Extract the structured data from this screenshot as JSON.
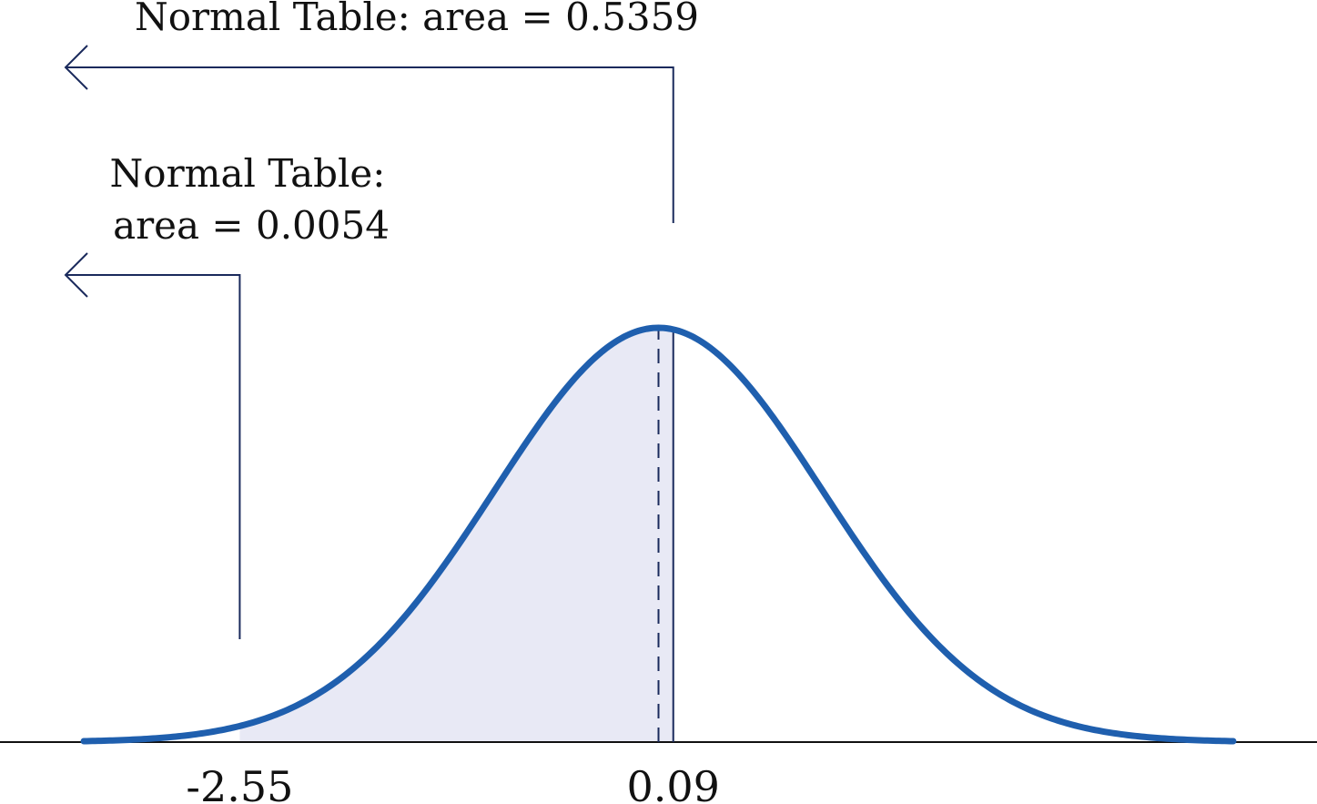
{
  "labels": {
    "upper_annotation": "Normal Table: area = 0.5359",
    "lower_annotation_line1": "Normal Table:",
    "lower_annotation_line2": "area = 0.0054",
    "tick_left": "-2.55",
    "tick_right": "0.09"
  },
  "distribution": {
    "mean": 0,
    "sd": 1,
    "x_range": [
      -3.5,
      3.5
    ],
    "shade_from": -2.55,
    "shade_to": 0.09,
    "cutoff_left": -2.55,
    "cutoff_right": 0.09,
    "left_area": 0.0054,
    "right_area": 0.5359
  },
  "colors": {
    "curve": "#1f5fae",
    "shade": "#e8e9f5",
    "annotation": "#1a2a5c",
    "axis": "#111111"
  }
}
